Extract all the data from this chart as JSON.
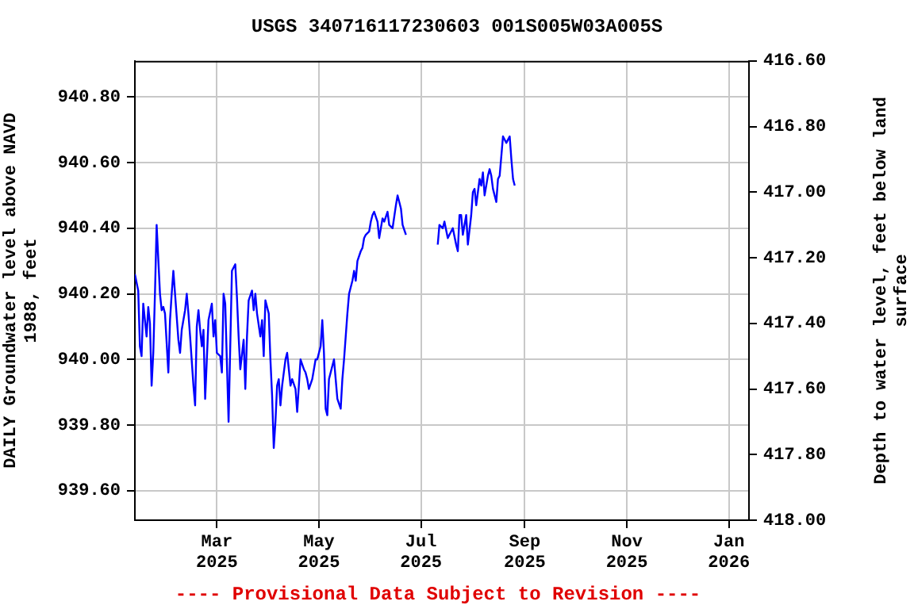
{
  "chart_data": {
    "type": "line",
    "title": "USGS 340716117230603 001S005W03A005S",
    "ylabel": "DAILY Groundwater level above NAVD 1988, feet",
    "y2label": "Depth to water level, feet below land surface",
    "annotations": [
      "---- Provisional Data Subject to Revision ----"
    ],
    "x": [
      "2025-01-11",
      "2025-01-13",
      "2025-01-14",
      "2025-01-15",
      "2025-01-16",
      "2025-01-18",
      "2025-01-19",
      "2025-01-20",
      "2025-01-21",
      "2025-01-22",
      "2025-01-23",
      "2025-01-24",
      "2025-01-26",
      "2025-01-27",
      "2025-01-28",
      "2025-01-29",
      "2025-01-31",
      "2025-02-01",
      "2025-02-02",
      "2025-02-03",
      "2025-02-04",
      "2025-02-06",
      "2025-02-07",
      "2025-02-08",
      "2025-02-10",
      "2025-02-11",
      "2025-02-12",
      "2025-02-13",
      "2025-02-15",
      "2025-02-16",
      "2025-02-17",
      "2025-02-18",
      "2025-02-19",
      "2025-02-20",
      "2025-02-21",
      "2025-02-22",
      "2025-02-23",
      "2025-02-24",
      "2025-02-26",
      "2025-02-27",
      "2025-02-28",
      "2025-03-01",
      "2025-03-03",
      "2025-03-04",
      "2025-03-05",
      "2025-03-06",
      "2025-03-08",
      "2025-03-09",
      "2025-03-10",
      "2025-03-12",
      "2025-03-13",
      "2025-03-14",
      "2025-03-15",
      "2025-03-17",
      "2025-03-18",
      "2025-03-19",
      "2025-03-20",
      "2025-03-22",
      "2025-03-23",
      "2025-03-24",
      "2025-03-25",
      "2025-03-27",
      "2025-03-28",
      "2025-03-29",
      "2025-03-30",
      "2025-04-01",
      "2025-04-02",
      "2025-04-03",
      "2025-04-04",
      "2025-04-05",
      "2025-04-06",
      "2025-04-07",
      "2025-04-08",
      "2025-04-09",
      "2025-04-11",
      "2025-04-12",
      "2025-04-13",
      "2025-04-14",
      "2025-04-15",
      "2025-04-17",
      "2025-04-18",
      "2025-04-19",
      "2025-04-20",
      "2025-04-22",
      "2025-04-23",
      "2025-04-24",
      "2025-04-25",
      "2025-04-27",
      "2025-04-28",
      "2025-04-29",
      "2025-04-30",
      "2025-05-02",
      "2025-05-03",
      "2025-05-04",
      "2025-05-05",
      "2025-05-06",
      "2025-05-07",
      "2025-05-09",
      "2025-05-10",
      "2025-05-11",
      "2025-05-12",
      "2025-05-14",
      "2025-05-15",
      "2025-05-16",
      "2025-05-17",
      "2025-05-18",
      "2025-05-19",
      "2025-05-21",
      "2025-05-22",
      "2025-05-23",
      "2025-05-24",
      "2025-05-26",
      "2025-05-27",
      "2025-05-28",
      "2025-05-29",
      "2025-05-31",
      "2025-06-01",
      "2025-06-02",
      "2025-06-03",
      "2025-06-05",
      "2025-06-06",
      "2025-06-08",
      "2025-06-09",
      "2025-06-11",
      "2025-06-12",
      "2025-06-14",
      "2025-06-16",
      "2025-06-17",
      "2025-06-19",
      "2025-06-20",
      "2025-06-22",
      "2025-07-01",
      "2025-07-11",
      "2025-07-12",
      "2025-07-14",
      "2025-07-15",
      "2025-07-17",
      "2025-07-18",
      "2025-07-20",
      "2025-07-22",
      "2025-07-23",
      "2025-07-24",
      "2025-07-25",
      "2025-07-26",
      "2025-07-27",
      "2025-07-28",
      "2025-07-29",
      "2025-07-31",
      "2025-08-01",
      "2025-08-02",
      "2025-08-03",
      "2025-08-05",
      "2025-08-06",
      "2025-08-07",
      "2025-08-08",
      "2025-08-10",
      "2025-08-11",
      "2025-08-12",
      "2025-08-13",
      "2025-08-15",
      "2025-08-16",
      "2025-08-17",
      "2025-08-18",
      "2025-08-19",
      "2025-08-21",
      "2025-08-22",
      "2025-08-23",
      "2025-08-24",
      "2025-08-25",
      "2025-08-26"
    ],
    "series": [
      {
        "color": "#0000ff",
        "values": [
          940.26,
          940.21,
          940.04,
          940.01,
          940.17,
          940.07,
          940.16,
          940.11,
          939.92,
          940.02,
          940.2,
          940.41,
          940.2,
          940.15,
          940.16,
          940.14,
          939.96,
          940.12,
          940.2,
          940.27,
          940.2,
          940.06,
          940.02,
          940.09,
          940.15,
          940.2,
          940.14,
          940.07,
          939.92,
          939.86,
          940.1,
          940.15,
          940.09,
          940.04,
          940.09,
          939.88,
          940.0,
          940.12,
          940.17,
          940.07,
          940.12,
          940.02,
          940.01,
          939.96,
          940.2,
          940.17,
          939.81,
          940.04,
          940.27,
          940.29,
          940.19,
          940.07,
          939.97,
          940.06,
          939.91,
          940.07,
          940.18,
          940.21,
          940.15,
          940.2,
          940.14,
          940.07,
          940.12,
          940.01,
          940.18,
          940.14,
          940.0,
          939.89,
          939.73,
          939.81,
          939.92,
          939.94,
          939.86,
          939.92,
          940.0,
          940.02,
          939.97,
          939.92,
          939.94,
          939.91,
          939.84,
          939.92,
          940.0,
          939.97,
          939.96,
          939.94,
          939.91,
          939.94,
          939.97,
          940.0,
          940.0,
          940.04,
          940.12,
          940.02,
          939.85,
          939.83,
          939.94,
          939.98,
          940.0,
          939.94,
          939.88,
          939.85,
          939.94,
          940.0,
          940.07,
          940.14,
          940.2,
          940.24,
          940.27,
          940.24,
          940.3,
          940.33,
          940.34,
          940.37,
          940.38,
          940.39,
          940.42,
          940.44,
          940.45,
          940.42,
          940.37,
          940.43,
          940.42,
          940.45,
          940.41,
          940.4,
          940.47,
          940.5,
          940.46,
          940.41,
          940.38,
          null,
          940.35,
          940.41,
          940.4,
          940.42,
          940.37,
          940.38,
          940.4,
          940.35,
          940.33,
          940.44,
          940.44,
          940.38,
          940.41,
          940.44,
          940.35,
          940.44,
          940.51,
          940.52,
          940.47,
          940.55,
          940.53,
          940.57,
          940.5,
          940.56,
          940.58,
          940.56,
          940.52,
          940.48,
          940.55,
          940.56,
          940.62,
          940.68,
          940.66,
          940.67,
          940.68,
          940.61,
          940.55,
          940.53
        ]
      }
    ],
    "xlim": [
      "2025-01-11",
      "2026-01-13"
    ],
    "xticks": [
      {
        "value": "2025-03-01",
        "label": "Mar\n2025"
      },
      {
        "value": "2025-05-01",
        "label": "May\n2025"
      },
      {
        "value": "2025-07-01",
        "label": "Jul\n2025"
      },
      {
        "value": "2025-09-01",
        "label": "Sep\n2025"
      },
      {
        "value": "2025-11-01",
        "label": "Nov\n2025"
      },
      {
        "value": "2026-01-01",
        "label": "Jan\n2026"
      }
    ],
    "ylim": [
      939.51,
      940.91
    ],
    "yticks": [
      {
        "value": 939.6,
        "label": "939.60"
      },
      {
        "value": 939.8,
        "label": "939.80"
      },
      {
        "value": 940.0,
        "label": "940.00"
      },
      {
        "value": 940.2,
        "label": "940.20"
      },
      {
        "value": 940.4,
        "label": "940.40"
      },
      {
        "value": 940.6,
        "label": "940.60"
      },
      {
        "value": 940.8,
        "label": "940.80"
      }
    ],
    "y2lim": [
      418.0,
      416.6
    ],
    "y2ticks": [
      {
        "value": 416.6,
        "label": "416.60"
      },
      {
        "value": 416.8,
        "label": "416.80"
      },
      {
        "value": 417.0,
        "label": "417.00"
      },
      {
        "value": 417.2,
        "label": "417.20"
      },
      {
        "value": 417.4,
        "label": "417.40"
      },
      {
        "value": 417.6,
        "label": "417.60"
      },
      {
        "value": 417.8,
        "label": "417.80"
      },
      {
        "value": 418.0,
        "label": "418.00"
      }
    ],
    "grid": true,
    "legend": false,
    "marker": "none",
    "line_style": "solid"
  }
}
